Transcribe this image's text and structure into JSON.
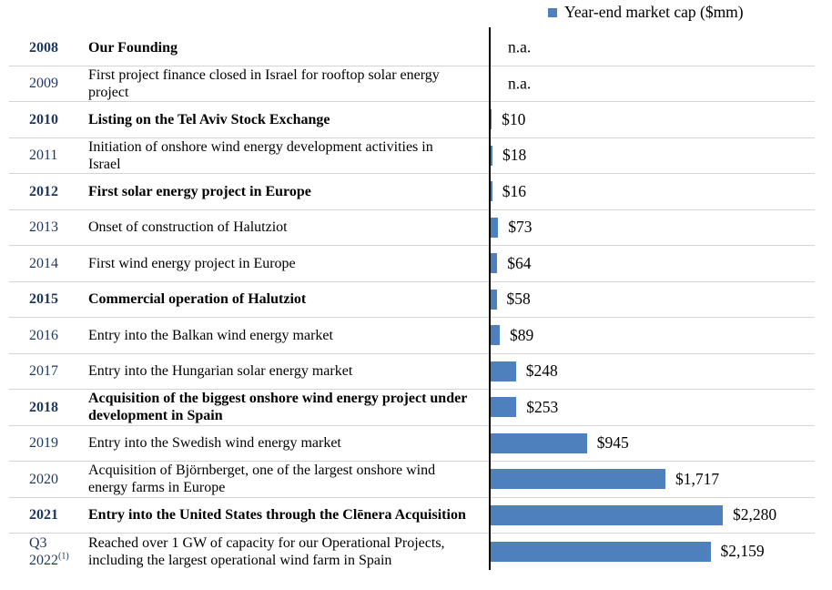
{
  "legend": {
    "label": "Year-end market cap ($mm)",
    "marker_color": "#4E80BD"
  },
  "colors": {
    "bar": "#4E80BD",
    "year_text": "#1F3864",
    "separator": "#D4D4D4",
    "axis": "#000000"
  },
  "chart_data": {
    "type": "bar",
    "orientation": "horizontal",
    "title": "Year-end market cap ($mm)",
    "categories": [
      "2008",
      "2009",
      "2010",
      "2011",
      "2012",
      "2013",
      "2014",
      "2015",
      "2016",
      "2017",
      "2018",
      "2019",
      "2020",
      "2021",
      "Q3 2022"
    ],
    "values": [
      null,
      null,
      10,
      18,
      16,
      73,
      64,
      58,
      89,
      248,
      253,
      945,
      1717,
      2280,
      2159
    ],
    "value_labels": [
      "n.a.",
      "n.a.",
      "$10",
      "$18",
      "$16",
      "$73",
      "$64",
      "$58",
      "$89",
      "$248",
      "$253",
      "$945",
      "$1,717",
      "$2,280",
      "$2,159"
    ],
    "xlim": [
      0,
      2400
    ],
    "grid": false,
    "legend_position": "top-right"
  },
  "rows": [
    {
      "year_lines": [
        "2008"
      ],
      "year_sup": "",
      "milestone": "Our Founding",
      "bold": true,
      "value": null,
      "value_label": "n.a."
    },
    {
      "year_lines": [
        "2009"
      ],
      "year_sup": "",
      "milestone": "First project finance closed in Israel for rooftop solar energy project",
      "bold": false,
      "value": null,
      "value_label": "n.a."
    },
    {
      "year_lines": [
        "2010"
      ],
      "year_sup": "",
      "milestone": "Listing on the Tel Aviv Stock Exchange",
      "bold": true,
      "value": 10,
      "value_label": "$10"
    },
    {
      "year_lines": [
        "2011"
      ],
      "year_sup": "",
      "milestone": "Initiation of onshore wind energy development activities in Israel",
      "bold": false,
      "value": 18,
      "value_label": "$18"
    },
    {
      "year_lines": [
        "2012"
      ],
      "year_sup": "",
      "milestone": "First solar energy project in Europe",
      "bold": true,
      "value": 16,
      "value_label": "$16"
    },
    {
      "year_lines": [
        "2013"
      ],
      "year_sup": "",
      "milestone": "Onset of construction of Halutziot",
      "bold": false,
      "value": 73,
      "value_label": "$73"
    },
    {
      "year_lines": [
        "2014"
      ],
      "year_sup": "",
      "milestone": "First wind energy project in Europe",
      "bold": false,
      "value": 64,
      "value_label": "$64"
    },
    {
      "year_lines": [
        "2015"
      ],
      "year_sup": "",
      "milestone": "Commercial operation of Halutziot",
      "bold": true,
      "value": 58,
      "value_label": "$58"
    },
    {
      "year_lines": [
        "2016"
      ],
      "year_sup": "",
      "milestone": "Entry into the Balkan wind energy market",
      "bold": false,
      "value": 89,
      "value_label": "$89"
    },
    {
      "year_lines": [
        "2017"
      ],
      "year_sup": "",
      "milestone": "Entry into the Hungarian solar energy market",
      "bold": false,
      "value": 248,
      "value_label": "$248"
    },
    {
      "year_lines": [
        "2018"
      ],
      "year_sup": "",
      "milestone": "Acquisition of the biggest onshore wind energy project under development in Spain",
      "bold": true,
      "value": 253,
      "value_label": "$253"
    },
    {
      "year_lines": [
        "2019"
      ],
      "year_sup": "",
      "milestone": "Entry into the Swedish wind energy market",
      "bold": false,
      "value": 945,
      "value_label": "$945"
    },
    {
      "year_lines": [
        "2020"
      ],
      "year_sup": "",
      "milestone": "Acquisition of Björnberget, one of the largest onshore wind energy farms in Europe",
      "bold": false,
      "value": 1717,
      "value_label": "$1,717"
    },
    {
      "year_lines": [
        "2021"
      ],
      "year_sup": "",
      "milestone": "Entry into the United States through the Clēnera Acquisition",
      "bold": true,
      "value": 2280,
      "value_label": "$2,280"
    },
    {
      "year_lines": [
        "Q3",
        "2022"
      ],
      "year_sup": "(1)",
      "milestone": "Reached over 1 GW of capacity for our Operational Projects, including the largest operational wind farm in Spain",
      "bold": false,
      "value": 2159,
      "value_label": "$2,159"
    }
  ]
}
